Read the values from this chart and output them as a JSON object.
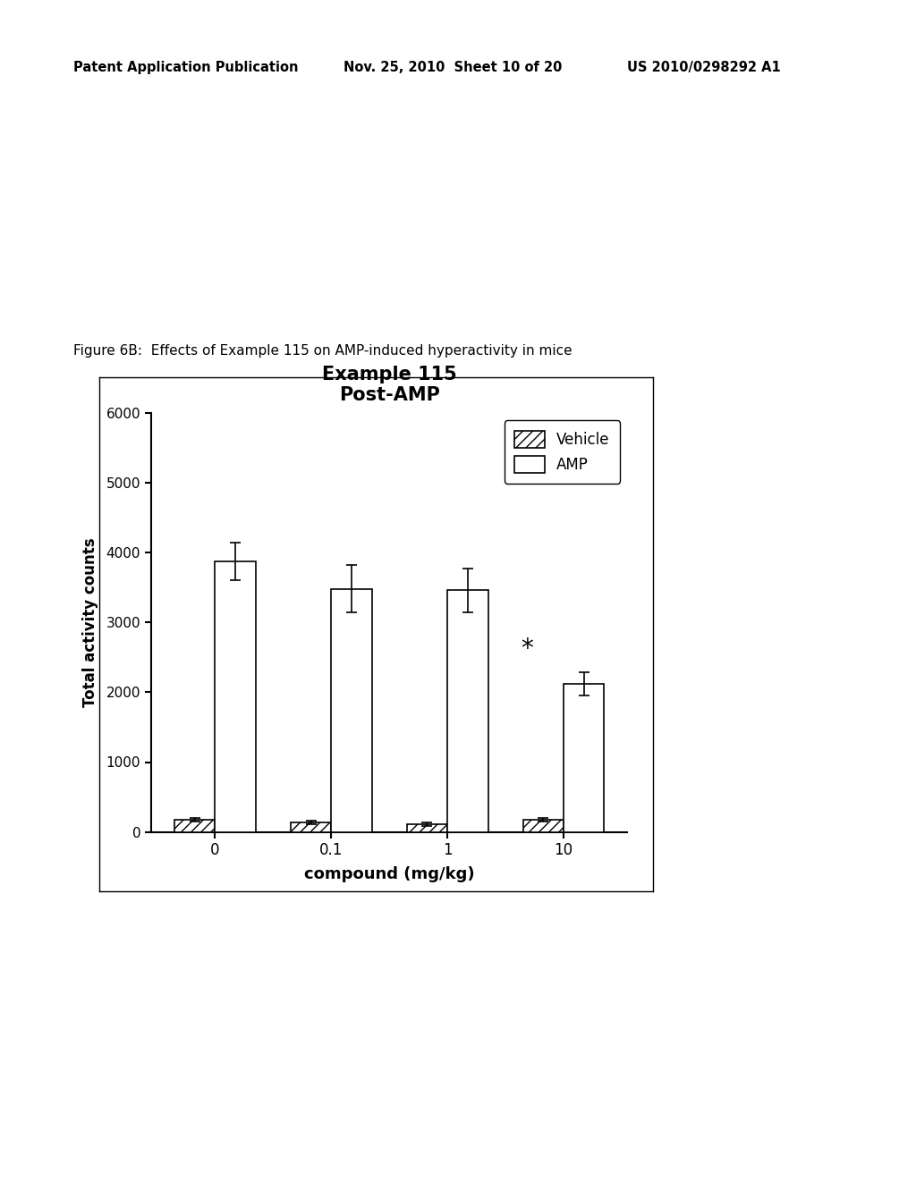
{
  "title_line1": "Example 115",
  "title_line2": "Post-AMP",
  "xlabel": "compound (mg/kg)",
  "ylabel": "Total activity counts",
  "figure_caption": "Figure 6B:  Effects of Example 115 on AMP-induced hyperactivity in mice",
  "header_left": "Patent Application Publication",
  "header_mid": "Nov. 25, 2010  Sheet 10 of 20",
  "header_right": "US 2010/0298292 A1",
  "doses": [
    "0",
    "0.1",
    "1",
    "10"
  ],
  "vehicle_values": [
    175,
    130,
    110,
    175
  ],
  "vehicle_errors": [
    30,
    25,
    20,
    30
  ],
  "amp_values": [
    3870,
    3480,
    3460,
    2120
  ],
  "amp_errors": [
    270,
    340,
    310,
    170
  ],
  "ylim": [
    0,
    6000
  ],
  "yticks": [
    0,
    1000,
    2000,
    3000,
    4000,
    5000,
    6000
  ],
  "bar_width": 0.35,
  "vehicle_color": "white",
  "vehicle_hatch": "///",
  "amp_color": "white",
  "amp_hatch": "",
  "star_annotation": "*",
  "star_dose_index": 3,
  "background_color": "white"
}
